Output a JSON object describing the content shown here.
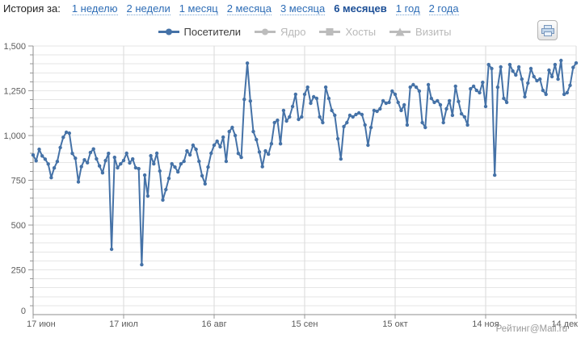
{
  "header": {
    "label": "История за:",
    "periods": [
      {
        "label": "1 неделю",
        "active": false
      },
      {
        "label": "2 недели",
        "active": false
      },
      {
        "label": "1 месяц",
        "active": false
      },
      {
        "label": "2 месяца",
        "active": false
      },
      {
        "label": "3 месяца",
        "active": false
      },
      {
        "label": "6 месяцев",
        "active": true
      },
      {
        "label": "1 год",
        "active": false
      },
      {
        "label": "2 года",
        "active": false
      }
    ]
  },
  "legend": [
    {
      "label": "Посетители",
      "active": true,
      "marker": "circle"
    },
    {
      "label": "Ядро",
      "active": false,
      "marker": "circle"
    },
    {
      "label": "Хосты",
      "active": false,
      "marker": "square"
    },
    {
      "label": "Визиты",
      "active": false,
      "marker": "triangle"
    }
  ],
  "toolbar": {
    "print_icon": "printer-icon"
  },
  "footer": {
    "brand": "Рейтинг@Mail.ru"
  },
  "colors": {
    "series_blue": "#4572a7",
    "link_blue": "#2e6db6",
    "active_period_blue": "#1b4e96",
    "inactive_gray": "#b9b9b9",
    "axis_text_gray": "#5c5c5c",
    "grid_gray": "#e6e6e6",
    "brand_gray": "#9a9a9a"
  },
  "chart_data": {
    "type": "line",
    "title": "",
    "xlabel": "",
    "ylabel": "",
    "legend_position": "top-center",
    "grid": true,
    "ylim": [
      0,
      1500
    ],
    "y_major_step": 250,
    "y_minor_step": 50,
    "y_tick_labels": [
      "0",
      "250",
      "500",
      "750",
      "1,000",
      "1,250",
      "1,500"
    ],
    "x_tick_labels": [
      "17 июн",
      "17 июл",
      "16 авг",
      "15 сен",
      "15 окт",
      "14 ноя",
      "14 дек"
    ],
    "x_tick_indices": [
      0,
      30,
      60,
      90,
      120,
      150,
      180
    ],
    "series": [
      {
        "name": "Посетители",
        "color": "#4572a7",
        "values": [
          891,
          859,
          923,
          886,
          868,
          841,
          765,
          819,
          855,
          933,
          990,
          1018,
          1013,
          900,
          873,
          741,
          826,
          864,
          848,
          905,
          925,
          870,
          830,
          792,
          860,
          900,
          365,
          878,
          820,
          842,
          861,
          901,
          847,
          869,
          820,
          815,
          279,
          779,
          662,
          887,
          842,
          901,
          802,
          640,
          698,
          761,
          842,
          824,
          797,
          842,
          856,
          914,
          892,
          946,
          923,
          856,
          775,
          730,
          824,
          901,
          946,
          968,
          937,
          991,
          856,
          1022,
          1045,
          1000,
          900,
          878,
          1202,
          1404,
          1193,
          1022,
          977,
          908,
          826,
          914,
          896,
          954,
          1072,
          1085,
          954,
          1140,
          1081,
          1104,
          1162,
          1230,
          1090,
          1104,
          1230,
          1270,
          1180,
          1216,
          1207,
          1104,
          1072,
          1270,
          1207,
          1140,
          1113,
          982,
          869,
          1050,
          1072,
          1113,
          1104,
          1117,
          1126,
          1117,
          1059,
          946,
          1045,
          1140,
          1135,
          1149,
          1194,
          1180,
          1185,
          1248,
          1230,
          1185,
          1140,
          1171,
          1059,
          1270,
          1284,
          1270,
          1248,
          1072,
          1045,
          1284,
          1207,
          1185,
          1194,
          1171,
          1072,
          1149,
          1194,
          1113,
          1275,
          1190,
          1121,
          1104,
          1059,
          1261,
          1275,
          1252,
          1239,
          1297,
          1162,
          1396,
          1374,
          779,
          1270,
          1383,
          1207,
          1185,
          1396,
          1360,
          1338,
          1383,
          1315,
          1216,
          1293,
          1374,
          1329,
          1306,
          1315,
          1252,
          1230,
          1365,
          1329,
          1396,
          1315,
          1419,
          1230,
          1239,
          1280,
          1380,
          1405
        ]
      }
    ]
  }
}
